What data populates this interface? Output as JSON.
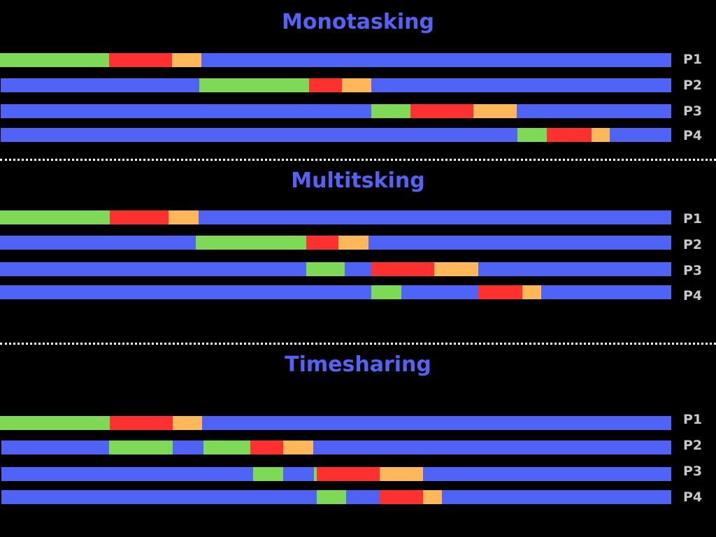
{
  "colors": {
    "background": "#000000",
    "title": "#5563f5",
    "wait": "#4f63f6",
    "cpu": "#7ed957",
    "io": "#ff3030",
    "done": "#ffb75a",
    "label": "#c8c8c8",
    "divider": "#ffffff"
  },
  "diagram": {
    "timeline_start": 0,
    "timeline_end": 960,
    "sections": [
      {
        "id": "monotasking",
        "title": "Monotasking",
        "rows": [
          {
            "label": "P1",
            "segments": [
              [
                "cpu",
                0,
                156
              ],
              [
                "io",
                156,
                246
              ],
              [
                "done",
                246,
                288
              ],
              [
                "wait",
                288,
                960
              ]
            ]
          },
          {
            "label": "P2",
            "segments": [
              [
                "wait",
                0,
                285
              ],
              [
                "cpu",
                285,
                442
              ],
              [
                "io",
                442,
                489
              ],
              [
                "done",
                489,
                531
              ],
              [
                "wait",
                531,
                960
              ]
            ]
          },
          {
            "label": "P3",
            "segments": [
              [
                "wait",
                0,
                531
              ],
              [
                "cpu",
                531,
                587
              ],
              [
                "io",
                587,
                677
              ],
              [
                "done",
                677,
                739
              ],
              [
                "wait",
                739,
                960
              ]
            ]
          },
          {
            "label": "P4",
            "segments": [
              [
                "wait",
                0,
                740
              ],
              [
                "cpu",
                740,
                782
              ],
              [
                "io",
                782,
                846
              ],
              [
                "done",
                846,
                872
              ],
              [
                "wait",
                872,
                960
              ]
            ]
          }
        ]
      },
      {
        "id": "multitasking",
        "title": "Multitsking",
        "rows": [
          {
            "label": "P1",
            "segments": [
              [
                "cpu",
                0,
                157
              ],
              [
                "io",
                157,
                241
              ],
              [
                "done",
                241,
                284
              ],
              [
                "wait",
                284,
                960
              ]
            ]
          },
          {
            "label": "P2",
            "segments": [
              [
                "wait",
                0,
                280
              ],
              [
                "cpu",
                280,
                438
              ],
              [
                "io",
                438,
                484
              ],
              [
                "done",
                484,
                527
              ],
              [
                "wait",
                527,
                960
              ]
            ]
          },
          {
            "label": "P3",
            "segments": [
              [
                "wait",
                0,
                438
              ],
              [
                "cpu",
                438,
                493
              ],
              [
                "wait",
                493,
                531
              ],
              [
                "io",
                531,
                621
              ],
              [
                "done",
                621,
                684
              ],
              [
                "wait",
                684,
                960
              ]
            ]
          },
          {
            "label": "P4",
            "segments": [
              [
                "wait",
                0,
                531
              ],
              [
                "cpu",
                531,
                574
              ],
              [
                "wait",
                574,
                684
              ],
              [
                "io",
                684,
                747
              ],
              [
                "done",
                747,
                774
              ],
              [
                "wait",
                774,
                960
              ]
            ]
          }
        ]
      },
      {
        "id": "timesharing",
        "title": "Timesharing",
        "rows": [
          {
            "label": "P1",
            "segments": [
              [
                "cpu",
                0,
                157
              ],
              [
                "io",
                157,
                247
              ],
              [
                "done",
                247,
                289
              ],
              [
                "wait",
                289,
                960
              ]
            ]
          },
          {
            "label": "P2",
            "segments": [
              [
                "wait",
                0,
                156
              ],
              [
                "cpu",
                156,
                247
              ],
              [
                "wait",
                247,
                291
              ],
              [
                "cpu",
                291,
                358
              ],
              [
                "io",
                358,
                405
              ],
              [
                "done",
                405,
                448
              ],
              [
                "wait",
                448,
                960
              ]
            ]
          },
          {
            "label": "P3",
            "segments": [
              [
                "wait",
                0,
                362
              ],
              [
                "cpu",
                362,
                405
              ],
              [
                "wait",
                405,
                449
              ],
              [
                "cpu",
                449,
                453
              ],
              [
                "io",
                453,
                543
              ],
              [
                "done",
                543,
                605
              ],
              [
                "wait",
                605,
                960
              ]
            ]
          },
          {
            "label": "P4",
            "segments": [
              [
                "wait",
                0,
                453
              ],
              [
                "cpu",
                453,
                495
              ],
              [
                "wait",
                495,
                543
              ],
              [
                "io",
                543,
                605
              ],
              [
                "done",
                605,
                632
              ],
              [
                "wait",
                632,
                960
              ]
            ]
          }
        ]
      }
    ]
  }
}
